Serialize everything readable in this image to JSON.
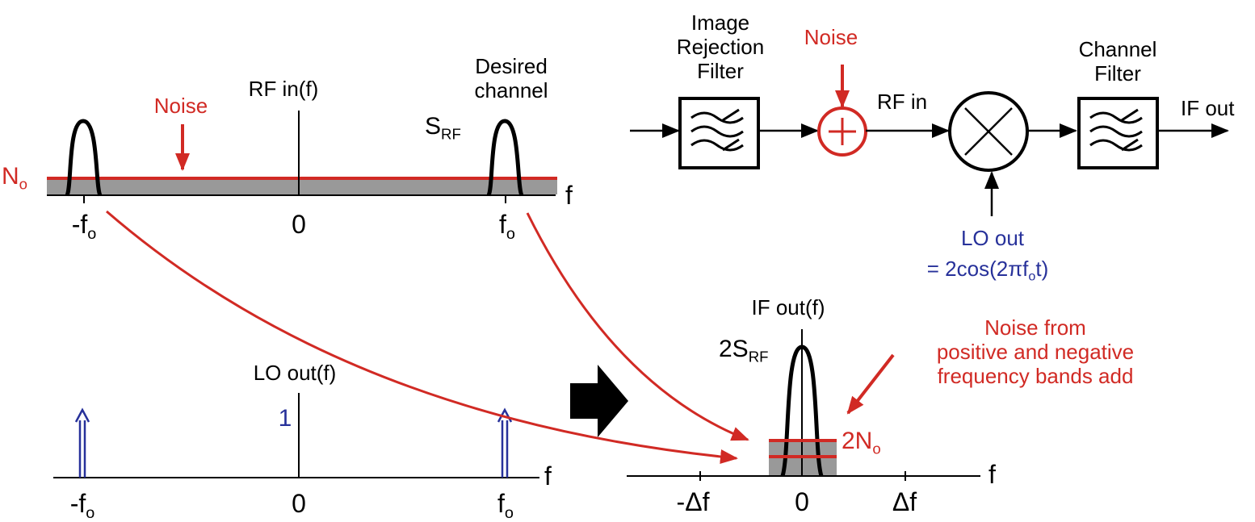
{
  "colors": {
    "noise_red": "#d12a24",
    "lo_blue": "#27319a",
    "ink": "#000000",
    "noise_fill": "#999999"
  },
  "block_diagram": {
    "image_filter_label": [
      "Image",
      "Rejection",
      "Filter"
    ],
    "noise_label": "Noise",
    "rf_in_label": "RF in",
    "channel_filter_label": [
      "Channel",
      "Filter"
    ],
    "if_out_label": "IF out",
    "lo_out_label": "LO out",
    "lo_eq_prefix": "= 2cos(2",
    "lo_eq_pi": "π",
    "lo_eq_f": "f",
    "lo_eq_sub": "o",
    "lo_eq_suffix": "t)",
    "icons": [
      "bandpass-filter-icon",
      "adder-icon",
      "mixer-icon"
    ]
  },
  "rf_spectrum": {
    "title": "RF in(f)",
    "noise_label": "Noise",
    "desired_label": [
      "Desired",
      "channel"
    ],
    "signal_label": "S",
    "signal_sub": "RF",
    "noise_level_label": "N",
    "noise_level_sub": "o",
    "axis_label": "f",
    "tick_neg": "-f",
    "tick_neg_sub": "o",
    "tick_zero": "0",
    "tick_pos": "f",
    "tick_pos_sub": "o"
  },
  "lo_spectrum": {
    "title": "LO out(f)",
    "impulse_label": "1",
    "axis_label": "f",
    "tick_neg": "-f",
    "tick_neg_sub": "o",
    "tick_zero": "0",
    "tick_pos": "f",
    "tick_pos_sub": "o"
  },
  "if_spectrum": {
    "title": "IF out(f)",
    "signal_label": "2S",
    "signal_sub": "RF",
    "noise_level_label": "2N",
    "noise_level_sub": "o",
    "annotation": [
      "Noise from",
      "positive and negative",
      "frequency bands add"
    ],
    "axis_label": "f",
    "tick_neg": "-Δf",
    "tick_zero": "0",
    "tick_pos": "Δf"
  }
}
